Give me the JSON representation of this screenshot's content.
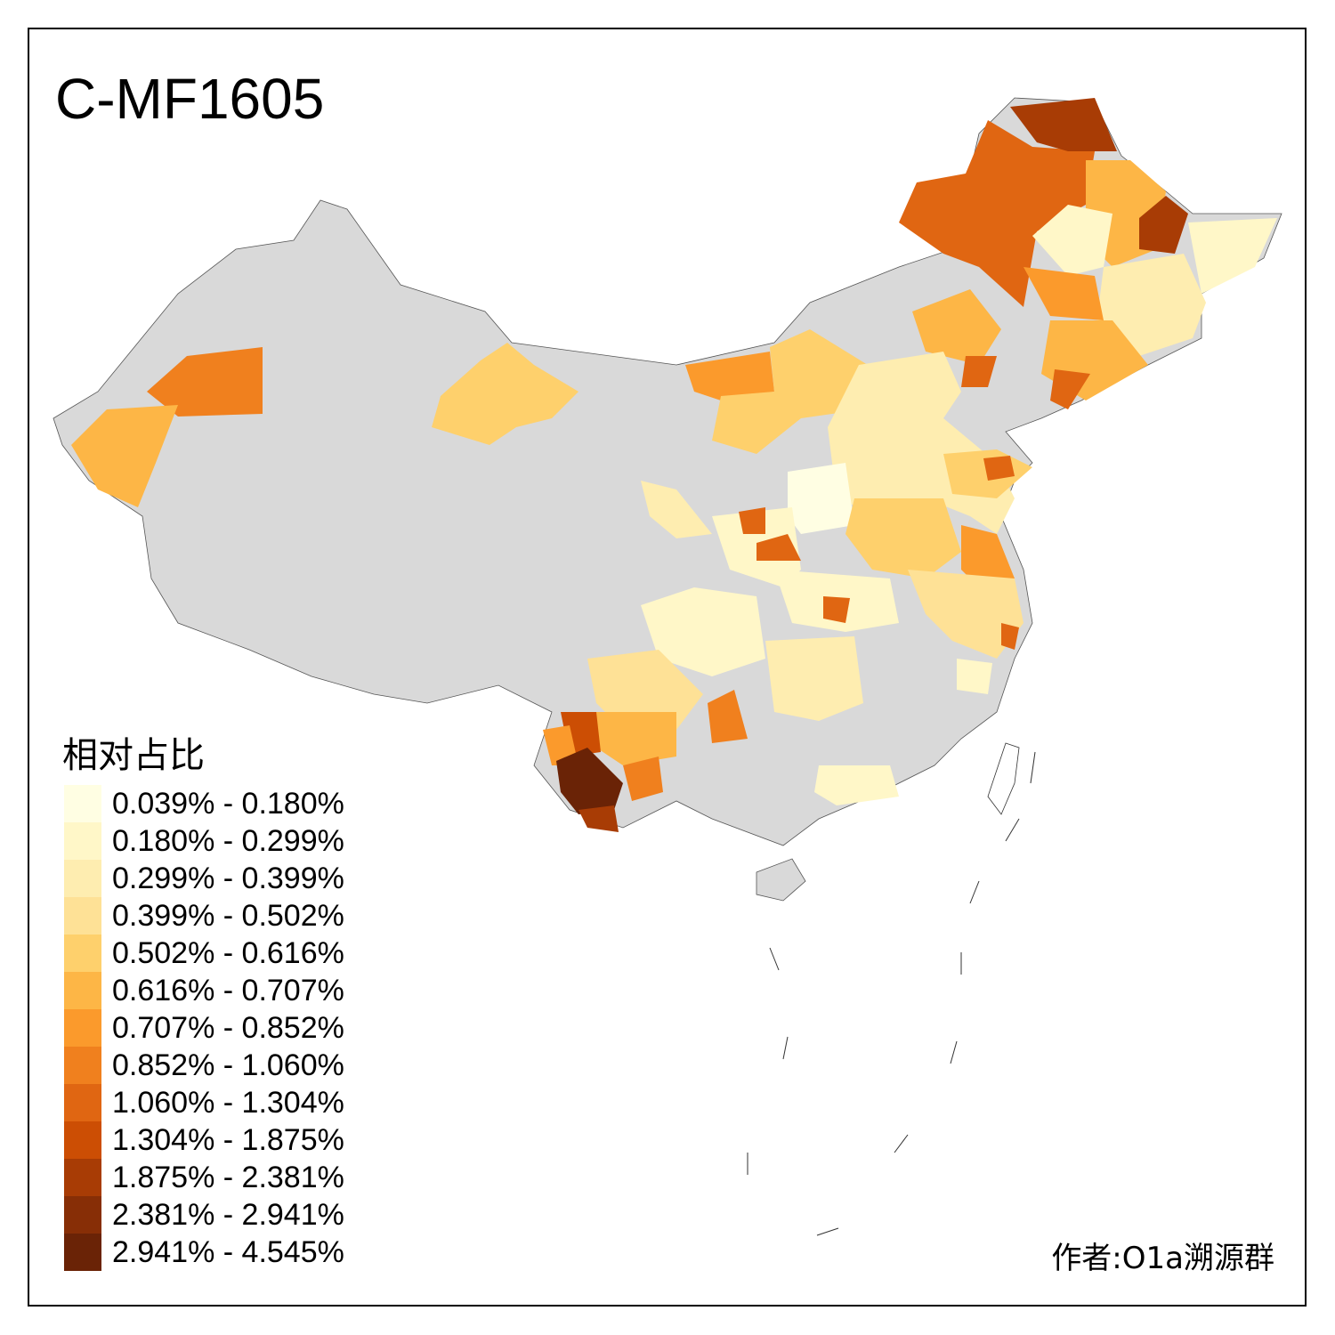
{
  "title": "C-MF1605",
  "legend": {
    "title": "相对占比",
    "classes": [
      {
        "label": "0.039% - 0.180%",
        "color": "#FFFEE3"
      },
      {
        "label": "0.180% - 0.299%",
        "color": "#FFF7C8"
      },
      {
        "label": "0.299% - 0.399%",
        "color": "#FEEDB0"
      },
      {
        "label": "0.399% - 0.502%",
        "color": "#FEE196"
      },
      {
        "label": "0.502% - 0.616%",
        "color": "#FED06C"
      },
      {
        "label": "0.616% - 0.707%",
        "color": "#FDB646"
      },
      {
        "label": "0.707% - 0.852%",
        "color": "#FB9A2C"
      },
      {
        "label": "0.852% - 1.060%",
        "color": "#F0801E"
      },
      {
        "label": "1.060% - 1.304%",
        "color": "#E06612"
      },
      {
        "label": "1.304% - 1.875%",
        "color": "#CC4E04"
      },
      {
        "label": "1.875% - 2.381%",
        "color": "#A83C05"
      },
      {
        "label": "2.381% - 2.941%",
        "color": "#872E06"
      },
      {
        "label": "2.941% - 4.545%",
        "color": "#6A2306"
      }
    ]
  },
  "no_data_color": "#D9D9D9",
  "author": "作者:O1a溯源群"
}
